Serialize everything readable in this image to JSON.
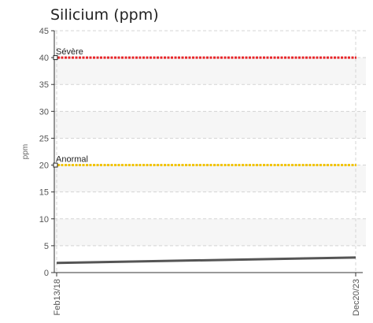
{
  "chart_data": {
    "type": "line",
    "title": "Silicium (ppm)",
    "ylabel": "ppm",
    "xlabel": "",
    "ylim": [
      0,
      45
    ],
    "y_ticks": [
      0,
      5,
      10,
      15,
      20,
      25,
      30,
      35,
      40,
      45
    ],
    "x": [
      "Feb13/18",
      "Dec20/23"
    ],
    "series": [
      {
        "values": [
          1.8,
          2.8
        ],
        "color": "#555555"
      }
    ],
    "thresholds": [
      {
        "label": "Sévère",
        "value": 40,
        "color": "#e8262a"
      },
      {
        "label": "Anormal",
        "value": 20,
        "color": "#f2c400"
      }
    ],
    "grid": true,
    "legend": "none"
  }
}
